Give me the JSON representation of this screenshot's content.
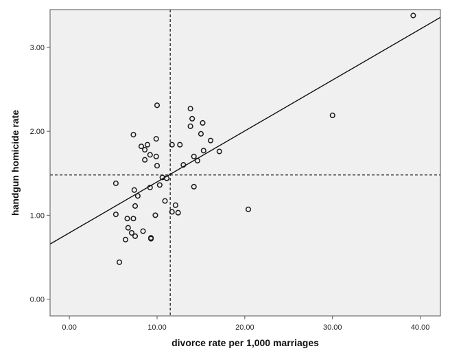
{
  "chart_data": {
    "type": "scatter",
    "title": "",
    "xlabel": "divorce rate per 1,000 marriages",
    "ylabel": "handgun homicide rate",
    "xlim": [
      -2.2,
      42.3
    ],
    "ylim": [
      -0.2,
      3.45
    ],
    "x_ticks": [
      0,
      10,
      20,
      30,
      40
    ],
    "y_ticks": [
      0,
      1,
      2,
      3
    ],
    "x_tick_labels": [
      "0.00",
      "10.00",
      "20.00",
      "30.00",
      "40.00"
    ],
    "y_tick_labels": [
      "0.00",
      "1.00",
      "2.00",
      "3.00"
    ],
    "grid": false,
    "background": "#f0f0f0",
    "points": [
      {
        "x": 5.3,
        "y": 1.38
      },
      {
        "x": 5.3,
        "y": 1.01
      },
      {
        "x": 5.7,
        "y": 0.44
      },
      {
        "x": 6.4,
        "y": 0.71
      },
      {
        "x": 6.6,
        "y": 0.96
      },
      {
        "x": 6.7,
        "y": 0.85
      },
      {
        "x": 7.1,
        "y": 0.79
      },
      {
        "x": 7.3,
        "y": 1.96
      },
      {
        "x": 7.3,
        "y": 0.96
      },
      {
        "x": 7.4,
        "y": 1.3
      },
      {
        "x": 7.5,
        "y": 1.11
      },
      {
        "x": 7.5,
        "y": 0.75
      },
      {
        "x": 7.8,
        "y": 1.23
      },
      {
        "x": 8.2,
        "y": 1.82
      },
      {
        "x": 8.4,
        "y": 0.81
      },
      {
        "x": 8.6,
        "y": 1.78
      },
      {
        "x": 8.6,
        "y": 1.66
      },
      {
        "x": 8.9,
        "y": 1.84
      },
      {
        "x": 9.2,
        "y": 1.72
      },
      {
        "x": 9.2,
        "y": 1.33
      },
      {
        "x": 9.3,
        "y": 0.73
      },
      {
        "x": 9.3,
        "y": 0.72
      },
      {
        "x": 9.8,
        "y": 1.0
      },
      {
        "x": 9.9,
        "y": 1.91
      },
      {
        "x": 9.9,
        "y": 1.7
      },
      {
        "x": 10.0,
        "y": 2.31
      },
      {
        "x": 10.0,
        "y": 1.59
      },
      {
        "x": 10.3,
        "y": 1.36
      },
      {
        "x": 10.6,
        "y": 1.45
      },
      {
        "x": 10.9,
        "y": 1.17
      },
      {
        "x": 11.1,
        "y": 1.44
      },
      {
        "x": 11.7,
        "y": 1.84
      },
      {
        "x": 11.7,
        "y": 1.04
      },
      {
        "x": 12.1,
        "y": 1.12
      },
      {
        "x": 12.4,
        "y": 1.03
      },
      {
        "x": 12.6,
        "y": 1.84
      },
      {
        "x": 13.0,
        "y": 1.6
      },
      {
        "x": 13.8,
        "y": 2.27
      },
      {
        "x": 13.8,
        "y": 2.06
      },
      {
        "x": 14.0,
        "y": 2.15
      },
      {
        "x": 14.2,
        "y": 1.7
      },
      {
        "x": 14.2,
        "y": 1.34
      },
      {
        "x": 14.6,
        "y": 1.65
      },
      {
        "x": 15.0,
        "y": 1.97
      },
      {
        "x": 15.2,
        "y": 2.1
      },
      {
        "x": 15.3,
        "y": 1.77
      },
      {
        "x": 16.1,
        "y": 1.89
      },
      {
        "x": 17.1,
        "y": 1.76
      },
      {
        "x": 20.4,
        "y": 1.07
      },
      {
        "x": 30.0,
        "y": 2.19
      },
      {
        "x": 39.2,
        "y": 3.38
      }
    ],
    "fit_line": {
      "intercept": 0.79,
      "slope": 0.0607
    },
    "reference_lines": {
      "x_mean": 11.5,
      "y_mean": 1.48
    },
    "colors": {
      "points": "#1a1a1a",
      "fit_line": "#111111",
      "reference": "#222222",
      "frame": "#555555"
    }
  }
}
